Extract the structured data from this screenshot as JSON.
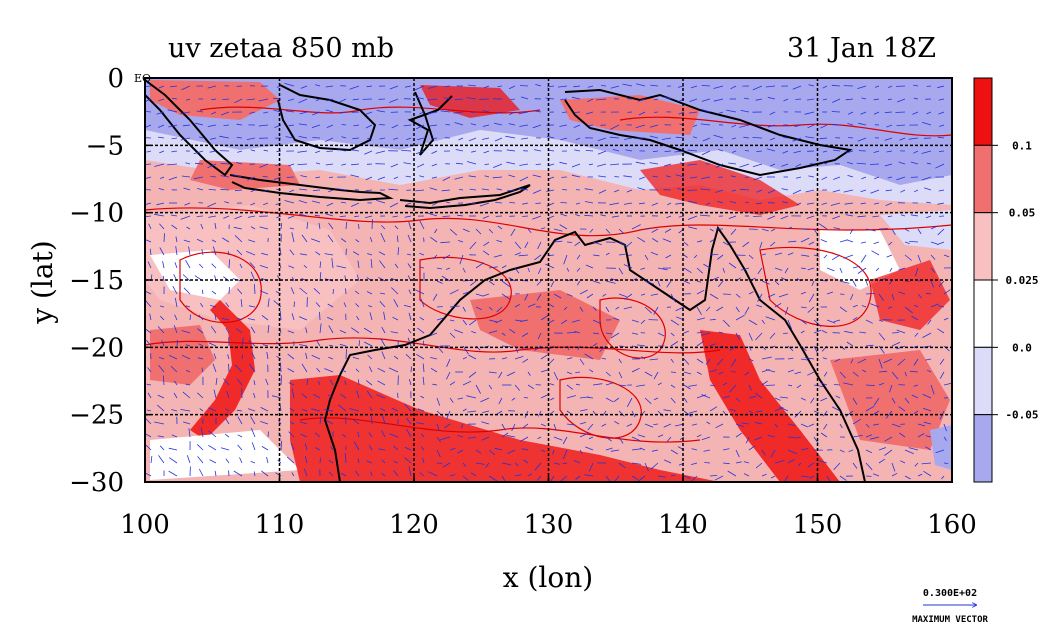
{
  "chart_data": {
    "type": "heatmap",
    "title": "uv zetaa 850 mb",
    "date_label": "31 Jan 18Z",
    "xlabel": "x (lon)",
    "ylabel": "y (lat)",
    "xlim": [
      100,
      160
    ],
    "ylim": [
      -30,
      0
    ],
    "x_ticks": [
      100,
      110,
      120,
      130,
      140,
      150,
      160
    ],
    "x_tick_labels": [
      "100",
      "110",
      "120",
      "130",
      "140",
      "150",
      "160"
    ],
    "y_ticks": [
      0,
      -5,
      -10,
      -15,
      -20,
      -25,
      -30
    ],
    "y_tick_labels": [
      "0",
      "−5",
      "−10",
      "−15",
      "−20",
      "−25",
      "−30"
    ],
    "eq_label": "EQ",
    "grid": true,
    "colorbar": {
      "labels": [
        "0.1",
        "0.05",
        "0.025",
        "0.0",
        "-0.05"
      ],
      "colors": [
        "#ee1111",
        "#f07070",
        "#f8c0c0",
        "#ffffff",
        "#dcdcf8",
        "#a8a8ee"
      ]
    },
    "vector_key": {
      "value": "0.300E+02",
      "label": "MAXIMUM VECTOR",
      "color": "#2233dd"
    },
    "colors": {
      "positive_strong": "#ee1111",
      "positive_mid": "#f07070",
      "positive_weak": "#f8c0c0",
      "negative_weak": "#dcdcf8",
      "negative_strong": "#a8a8ee",
      "contour": "#dd0000",
      "coastline": "#000000",
      "vectors": "#2233dd"
    }
  }
}
